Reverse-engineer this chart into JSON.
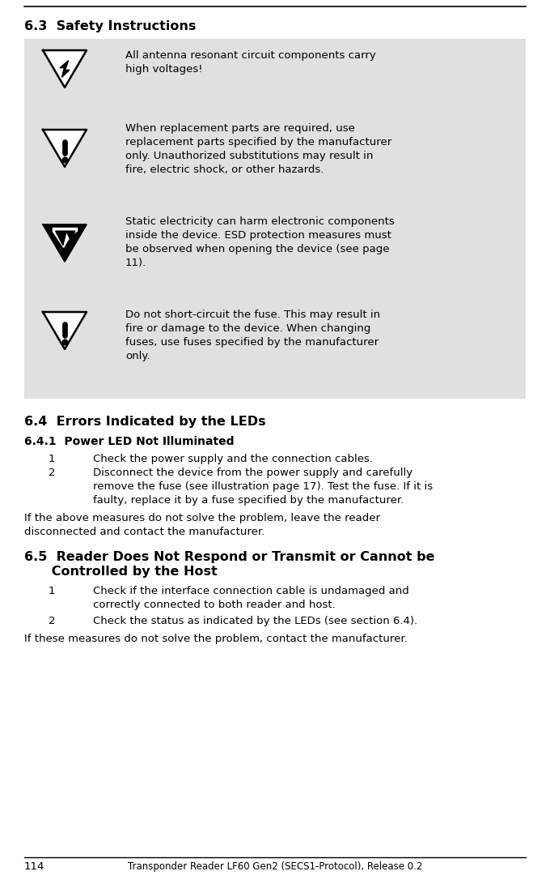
{
  "bg_color": "#ffffff",
  "warning_box_bg": "#e0e0e0",
  "section_63_title": "6.3  Safety Instructions",
  "section_64_title": "6.4  Errors Indicated by the LEDs",
  "section_641_title": "6.4.1  Power LED Not Illuminated",
  "section_65_title_line1": "6.5  Reader Does Not Respond or Transmit or Cannot be",
  "section_65_title_line2": "      Controlled by the Host",
  "item_641_1": "Check the power supply and the connection cables.",
  "item_641_2_line1": "Disconnect the device from the power supply and carefully",
  "item_641_2_line2": "remove the fuse (see illustration page 17). Test the fuse. If it is",
  "item_641_2_line3": "faulty, replace it by a fuse specified by the manufacturer.",
  "para_641_line1": "If the above measures do not solve the problem, leave the reader",
  "para_641_line2": "disconnected and contact the manufacturer.",
  "item_651_1_line1": "Check if the interface connection cable is undamaged and",
  "item_651_1_line2": "correctly connected to both reader and host.",
  "item_651_2": "Check the status as indicated by the LEDs (see section 6.4).",
  "para_651": "If these measures do not solve the problem, contact the manufacturer.",
  "footer_page": "114",
  "footer_text": "Transponder Reader LF60 Gen2 (SECS1-Protocol), Release 0.2",
  "warn1_text_line1": "All antenna resonant circuit components carry",
  "warn1_text_line2": "high voltages!",
  "warn2_text_line1": "When replacement parts are required, use",
  "warn2_text_line2": "replacement parts specified by the manufacturer",
  "warn2_text_line3": "only. Unauthorized substitutions may result in",
  "warn2_text_line4": "fire, electric shock, or other hazards.",
  "warn3_text_line1": "Static electricity can harm electronic components",
  "warn3_text_line2": "inside the device. ESD protection measures must",
  "warn3_text_line3": "be observed when opening the device (see page",
  "warn3_text_line4": "11).",
  "warn4_text_line1": "Do not short-circuit the fuse. This may result in",
  "warn4_text_line2": "fire or damage to the device. When changing",
  "warn4_text_line3": "fuses, use fuses specified by the manufacturer",
  "warn4_text_line4": "only."
}
